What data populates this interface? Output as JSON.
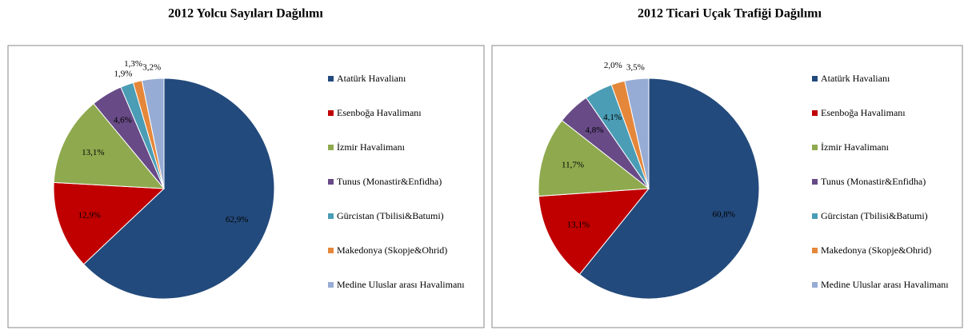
{
  "chart_data": [
    {
      "type": "pie",
      "title": "2012 Yolcu Sayıları Dağılımı",
      "categories": [
        "Atatürk Havalianı",
        "Esenboğa Havalimanı",
        "İzmir Havalimanı",
        "Tunus (Monastir&Enfidha)",
        "Gürcistan (Tbilisi&Batumi)",
        "Makedonya (Skopje&Ohrid)",
        "Medine Uluslar arası Havalimanı"
      ],
      "values": [
        62.9,
        12.9,
        13.1,
        4.6,
        1.9,
        1.3,
        3.2
      ],
      "value_labels": [
        "62,9%",
        "12,9%",
        "13,1%",
        "4,6%",
        "1,9%",
        "1,3%",
        "3,2%"
      ],
      "colors": [
        "#234a7c",
        "#c00000",
        "#8faa4e",
        "#674a86",
        "#4a9db5",
        "#e5873a",
        "#97acd4"
      ]
    },
    {
      "type": "pie",
      "title": "2012 Ticari Uçak Trafiği Dağılımı",
      "categories": [
        "Atatürk Havalianı",
        "Esenboğa Havalimanı",
        "İzmir Havalimanı",
        "Tunus (Monastir&Enfidha)",
        "Gürcistan (Tbilisi&Batumi)",
        "Makedonya (Skopje&Ohrid)",
        "Medine Uluslar arası Havalimanı"
      ],
      "values": [
        60.8,
        13.1,
        11.7,
        4.8,
        4.1,
        2.0,
        3.5
      ],
      "value_labels": [
        "60,8%",
        "13,1%",
        "11,7%",
        "4,8%",
        "4,1%",
        "2,0%",
        "3,5%"
      ],
      "colors": [
        "#234a7c",
        "#c00000",
        "#8faa4e",
        "#674a86",
        "#4a9db5",
        "#e5873a",
        "#97acd4"
      ]
    }
  ]
}
